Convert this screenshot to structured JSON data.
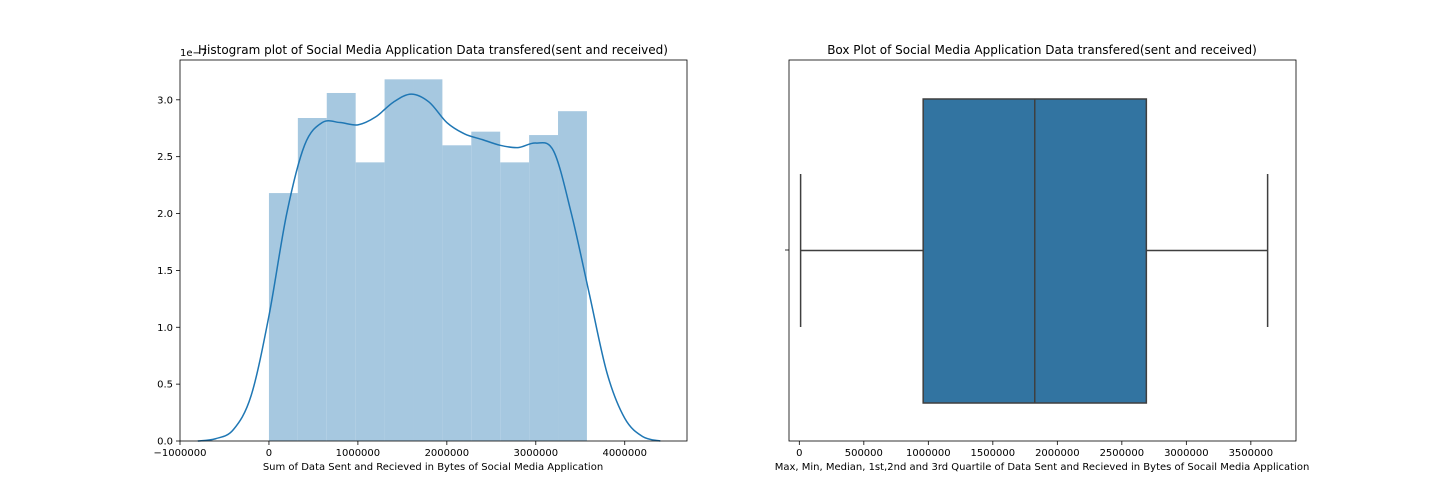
{
  "chart_data": [
    {
      "type": "bar",
      "subtype": "histogram-with-kde",
      "title": "Histogram plot of Social Media Application Data transfered(sent and received)",
      "xlabel": "Sum of Data Sent and Recieved in Bytes of Social Media Application",
      "ylabel": "",
      "y_offset_label": "1e−7",
      "xlim": [
        -1000000,
        4700000
      ],
      "ylim": [
        0,
        3.35
      ],
      "xticks": [
        -1000000,
        0,
        1000000,
        2000000,
        3000000,
        4000000
      ],
      "xtick_labels": [
        "−1000000",
        "0",
        "1000000",
        "2000000",
        "3000000",
        "4000000"
      ],
      "yticks": [
        0.0,
        0.5,
        1.0,
        1.5,
        2.0,
        2.5,
        3.0
      ],
      "ytick_labels": [
        "0.0",
        "0.5",
        "1.0",
        "1.5",
        "2.0",
        "2.5",
        "3.0"
      ],
      "bins": [
        {
          "x0": 0,
          "x1": 325000,
          "value": 2.18
        },
        {
          "x0": 325000,
          "x1": 650000,
          "value": 2.84
        },
        {
          "x0": 650000,
          "x1": 975000,
          "value": 3.06
        },
        {
          "x0": 975000,
          "x1": 1300000,
          "value": 2.45
        },
        {
          "x0": 1300000,
          "x1": 1625000,
          "value": 3.18
        },
        {
          "x0": 1625000,
          "x1": 1950000,
          "value": 3.18
        },
        {
          "x0": 1950000,
          "x1": 2275000,
          "value": 2.6
        },
        {
          "x0": 2275000,
          "x1": 2600000,
          "value": 2.72
        },
        {
          "x0": 2600000,
          "x1": 2925000,
          "value": 2.45
        },
        {
          "x0": 2925000,
          "x1": 3250000,
          "value": 2.69
        },
        {
          "x0": 3250000,
          "x1": 3575000,
          "value": 2.9
        }
      ],
      "kde": {
        "x": [
          -800000,
          -600000,
          -400000,
          -200000,
          0,
          200000,
          400000,
          600000,
          800000,
          1000000,
          1200000,
          1400000,
          1600000,
          1800000,
          2000000,
          2200000,
          2400000,
          2600000,
          2800000,
          3000000,
          3200000,
          3400000,
          3600000,
          3800000,
          4000000,
          4200000,
          4400000
        ],
        "y": [
          0.0,
          0.02,
          0.1,
          0.4,
          1.1,
          2.0,
          2.6,
          2.8,
          2.8,
          2.78,
          2.85,
          2.98,
          3.05,
          2.98,
          2.8,
          2.7,
          2.65,
          2.6,
          2.58,
          2.62,
          2.55,
          2.0,
          1.3,
          0.6,
          0.2,
          0.04,
          0.0
        ]
      },
      "colors": {
        "bars": "#a6c8e0",
        "kde": "#1f77b4"
      }
    },
    {
      "type": "box",
      "title": "Box Plot of Social Media Application Data transfered(sent and received)",
      "xlabel": "Max, Min, Median, 1st,2nd and 3rd Quartile of Data Sent and Recieved in Bytes of Socail Media Application",
      "ylabel": "",
      "xlim": [
        -80000,
        3850000
      ],
      "xticks": [
        0,
        500000,
        1000000,
        1500000,
        2000000,
        2500000,
        3000000,
        3500000
      ],
      "xtick_labels": [
        "0",
        "500000",
        "1000000",
        "1500000",
        "2000000",
        "2500000",
        "3000000",
        "3500000"
      ],
      "stats": {
        "min": 10000,
        "q1": 960000,
        "median": 1825000,
        "q3": 2690000,
        "max": 3630000
      },
      "colors": {
        "box": "#3274a1",
        "lines": "#3f3f3f"
      }
    }
  ]
}
